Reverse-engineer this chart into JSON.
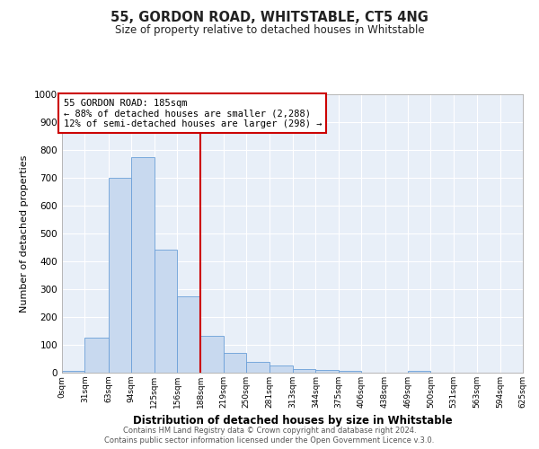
{
  "title": "55, GORDON ROAD, WHITSTABLE, CT5 4NG",
  "subtitle": "Size of property relative to detached houses in Whitstable",
  "xlabel": "Distribution of detached houses by size in Whitstable",
  "ylabel": "Number of detached properties",
  "bar_color": "#c8d9ef",
  "bar_edge_color": "#6a9fd8",
  "background_color": "#e8eff8",
  "grid_color": "#ffffff",
  "vline_x": 188,
  "vline_color": "#cc0000",
  "bin_edges": [
    0,
    31,
    63,
    94,
    125,
    156,
    188,
    219,
    250,
    281,
    313,
    344,
    375,
    406,
    438,
    469,
    500,
    531,
    563,
    594,
    625
  ],
  "bin_labels": [
    "0sqm",
    "31sqm",
    "63sqm",
    "94sqm",
    "125sqm",
    "156sqm",
    "188sqm",
    "219sqm",
    "250sqm",
    "281sqm",
    "313sqm",
    "344sqm",
    "375sqm",
    "406sqm",
    "438sqm",
    "469sqm",
    "500sqm",
    "531sqm",
    "563sqm",
    "594sqm",
    "625sqm"
  ],
  "bar_heights": [
    8,
    127,
    700,
    775,
    443,
    275,
    133,
    70,
    40,
    27,
    12,
    10,
    5,
    0,
    0,
    8,
    0,
    0,
    0,
    0
  ],
  "ylim": [
    0,
    1000
  ],
  "yticks": [
    0,
    100,
    200,
    300,
    400,
    500,
    600,
    700,
    800,
    900,
    1000
  ],
  "annotation_title": "55 GORDON ROAD: 185sqm",
  "annotation_line1": "← 88% of detached houses are smaller (2,288)",
  "annotation_line2": "12% of semi-detached houses are larger (298) →",
  "box_color": "#ffffff",
  "box_edge_color": "#cc0000",
  "footer1": "Contains HM Land Registry data © Crown copyright and database right 2024.",
  "footer2": "Contains public sector information licensed under the Open Government Licence v.3.0."
}
